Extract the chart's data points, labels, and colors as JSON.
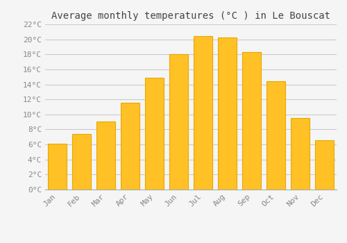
{
  "title": "Average monthly temperatures (°C ) in Le Bouscat",
  "months": [
    "Jan",
    "Feb",
    "Mar",
    "Apr",
    "May",
    "Jun",
    "Jul",
    "Aug",
    "Sep",
    "Oct",
    "Nov",
    "Dec"
  ],
  "values": [
    6.1,
    7.4,
    9.1,
    11.6,
    14.9,
    18.0,
    20.4,
    20.2,
    18.3,
    14.4,
    9.5,
    6.6
  ],
  "bar_color": "#FFC125",
  "bar_edge_color": "#E8A800",
  "background_color": "#F5F5F5",
  "grid_color": "#CCCCCC",
  "text_color": "#888888",
  "ylim": [
    0,
    22
  ],
  "yticks": [
    0,
    2,
    4,
    6,
    8,
    10,
    12,
    14,
    16,
    18,
    20,
    22
  ],
  "title_fontsize": 10,
  "tick_fontsize": 8,
  "font_family": "monospace"
}
